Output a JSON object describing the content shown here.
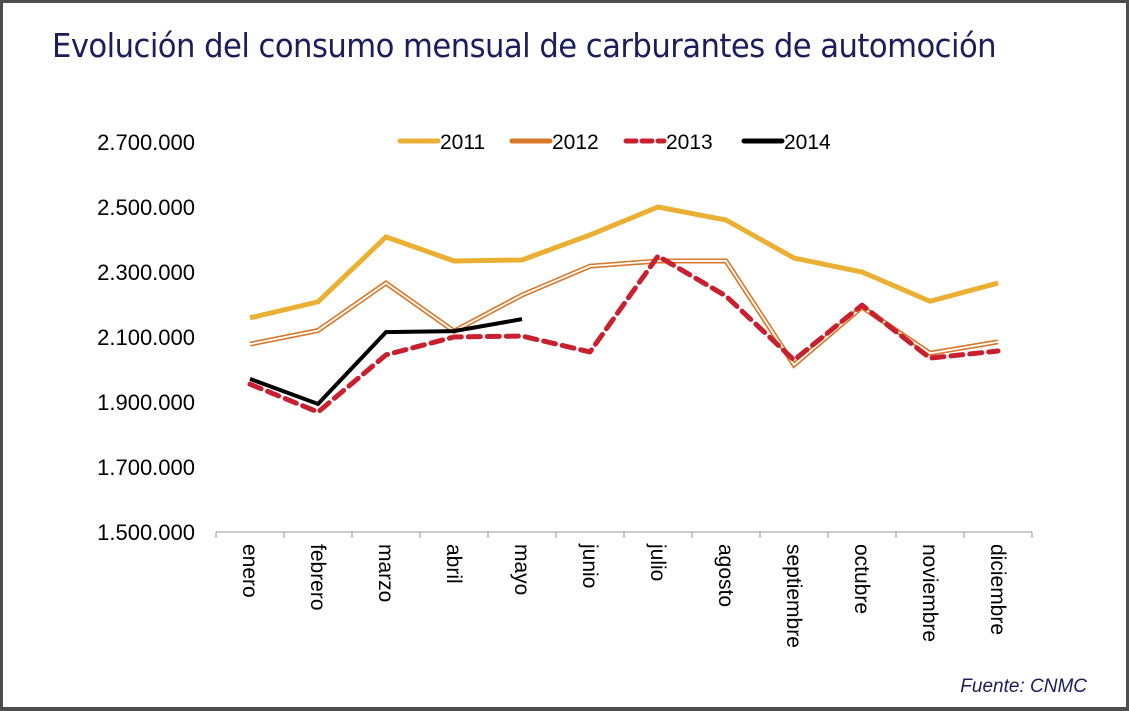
{
  "title": "Evolución del consumo mensual de carburantes de automoción",
  "source": "Fuente: CNMC",
  "chart_data": {
    "type": "line",
    "title": "Evolución del consumo mensual de carburantes de automoción",
    "xlabel": "",
    "ylabel": "",
    "categories": [
      "enero",
      "febrero",
      "marzo",
      "abril",
      "mayo",
      "junio",
      "julio",
      "agosto",
      "septiembre",
      "octubre",
      "noviembre",
      "diciembre"
    ],
    "ylim": [
      1500000,
      2700000
    ],
    "yticks": [
      1500000,
      1700000,
      1900000,
      2100000,
      2300000,
      2500000,
      2700000
    ],
    "ytick_labels": [
      "1.500.000",
      "1.700.000",
      "1.900.000",
      "2.100.000",
      "2.300.000",
      "2.500.000",
      "2.700.000"
    ],
    "grid": false,
    "legend_position": "top",
    "series": [
      {
        "name": "2011",
        "color": "#ebb033",
        "style": "solid",
        "values": [
          2159000,
          2208000,
          2408000,
          2334000,
          2337000,
          2414000,
          2500000,
          2460000,
          2343000,
          2300000,
          2210000,
          2266000
        ]
      },
      {
        "name": "2012",
        "color": "#d9772a",
        "style": "double",
        "values": [
          2078000,
          2120000,
          2266000,
          2118000,
          2229000,
          2318000,
          2334000,
          2334000,
          2014000,
          2192000,
          2050000,
          2085000
        ]
      },
      {
        "name": "2013",
        "color": "#c8202f",
        "style": "dashed",
        "values": [
          1955000,
          1869000,
          2045000,
          2100000,
          2103000,
          2054000,
          2349000,
          2226000,
          2029000,
          2198000,
          2035000,
          2057000
        ]
      },
      {
        "name": "2014",
        "color": "#000000",
        "style": "solid",
        "values": [
          1971000,
          1894000,
          2115000,
          2118000,
          2155000,
          null,
          null,
          null,
          null,
          null,
          null,
          null
        ]
      }
    ]
  }
}
